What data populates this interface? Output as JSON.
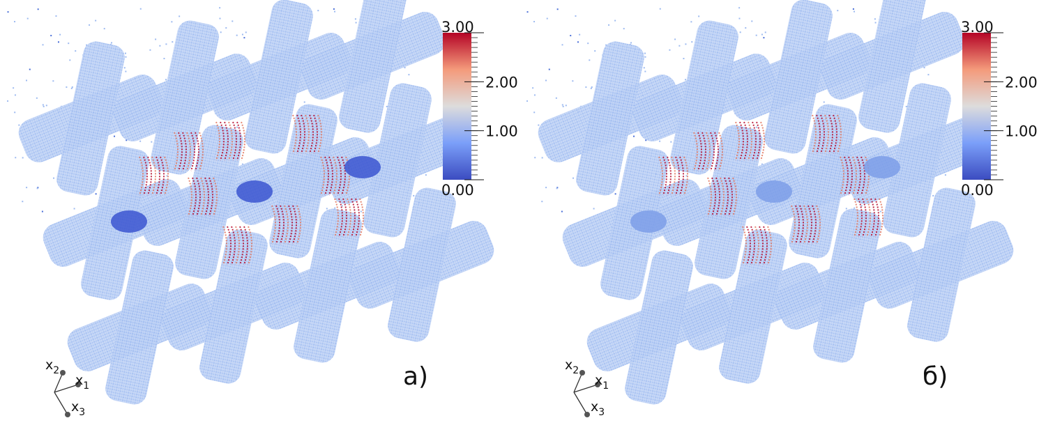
{
  "panels": [
    {
      "label": "a)",
      "colorbar": {
        "range": [
          0,
          3
        ],
        "ticks": [
          {
            "value": 0,
            "label": "0.00"
          },
          {
            "value": 1,
            "label": "1.00"
          },
          {
            "value": 2,
            "label": "2.00"
          },
          {
            "value": 3,
            "label": "3.00"
          }
        ]
      },
      "axes": [
        {
          "base": "x",
          "sub": "2"
        },
        {
          "base": "x",
          "sub": "1"
        },
        {
          "base": "x",
          "sub": "3"
        }
      ]
    },
    {
      "label": "б)",
      "colorbar": {
        "range": [
          0,
          3
        ],
        "ticks": [
          {
            "value": 0,
            "label": "0.00"
          },
          {
            "value": 1,
            "label": "1.00"
          },
          {
            "value": 2,
            "label": "2.00"
          },
          {
            "value": 3,
            "label": "3.00"
          }
        ]
      },
      "axes": [
        {
          "base": "x",
          "sub": "2"
        },
        {
          "base": "x",
          "sub": "1"
        },
        {
          "base": "x",
          "sub": "3"
        }
      ]
    }
  ]
}
